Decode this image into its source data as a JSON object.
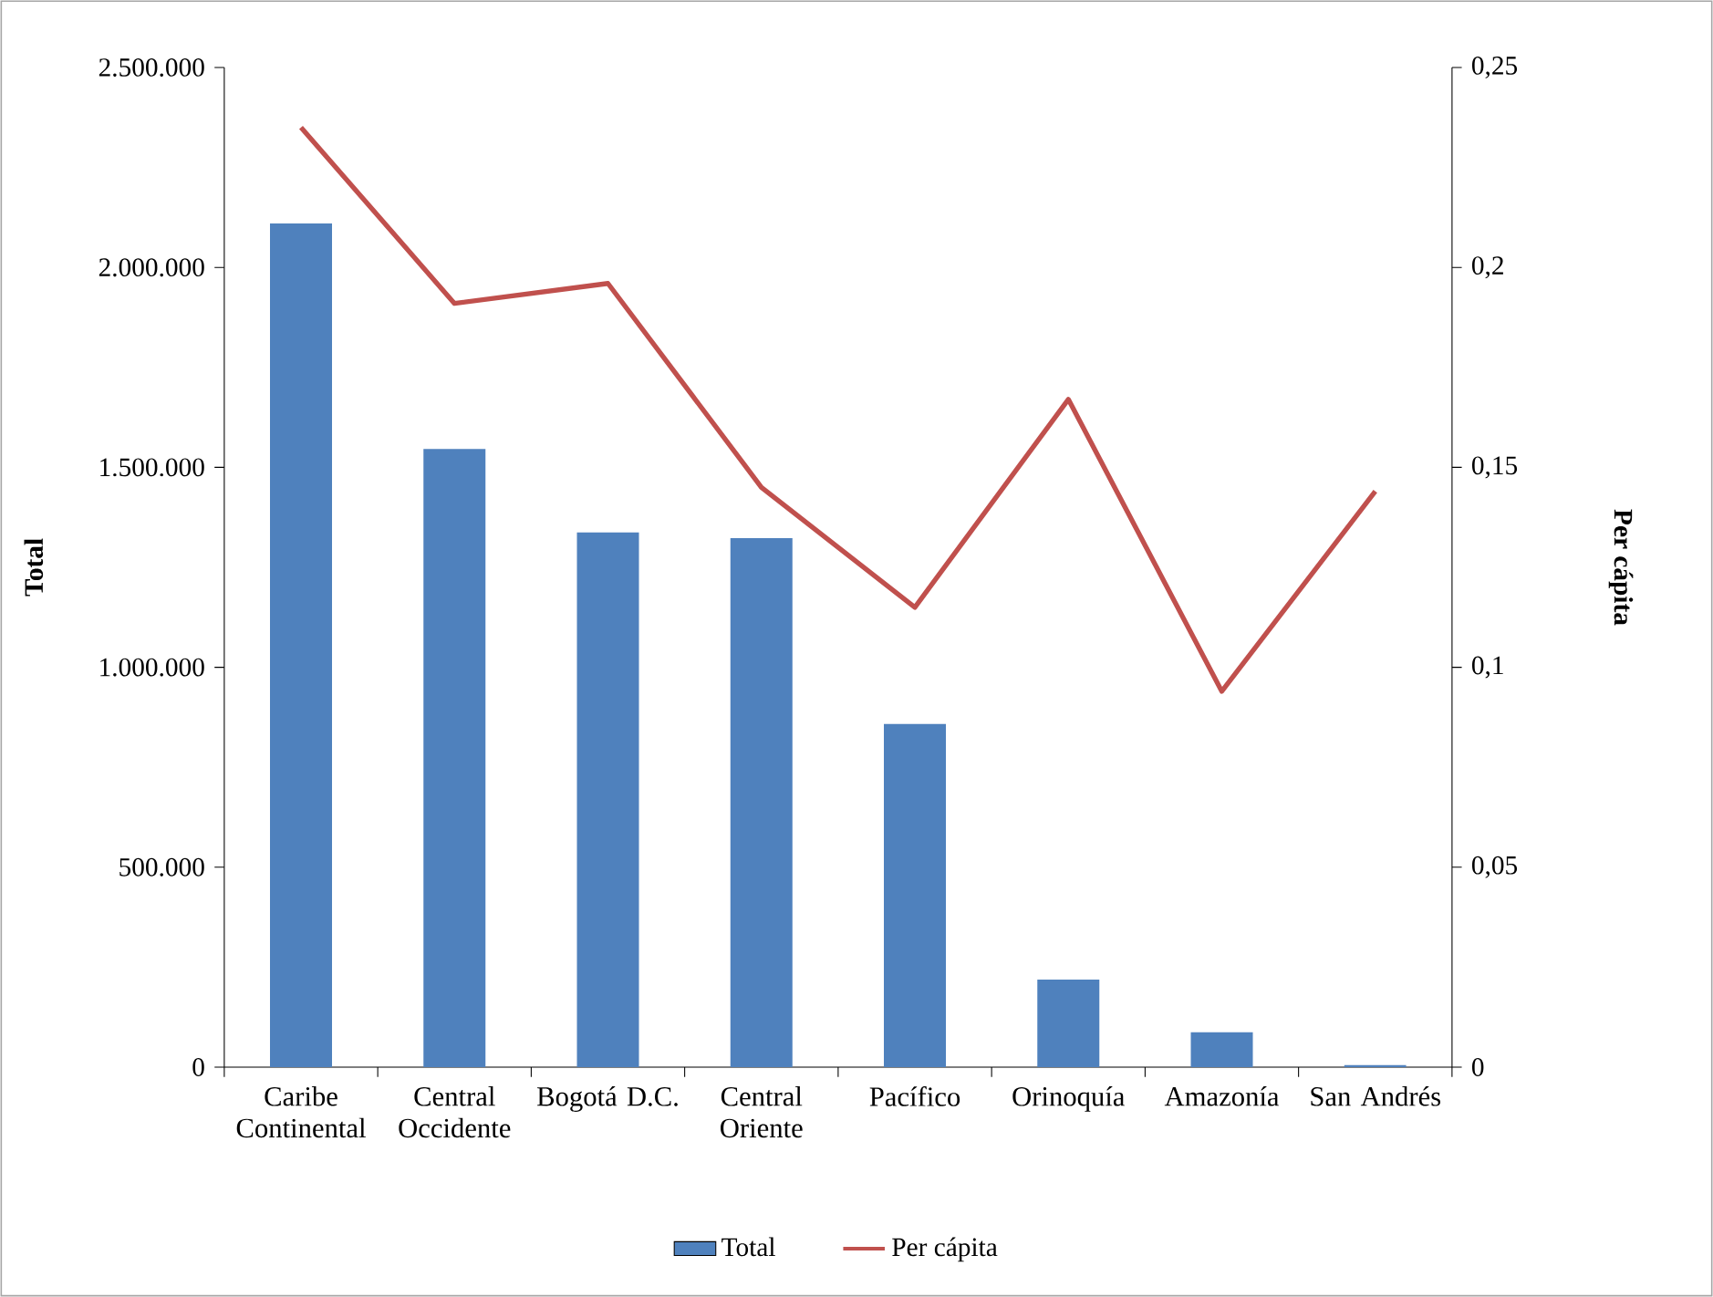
{
  "chart_data": {
    "type": "bar",
    "categories": [
      "Caribe Continental",
      "Central Occidente",
      "Bogotá D.C.",
      "Central Oriente",
      "Pacífico",
      "Orinoquía",
      "Amazonía",
      "San Andrés"
    ],
    "series": [
      {
        "name": "Total",
        "color": "#4f81bd",
        "values": [
          2110000,
          1546000,
          1337000,
          1323000,
          858000,
          219000,
          87000,
          5000
        ]
      },
      {
        "name": "Per cápita",
        "type": "line",
        "axis": "y2",
        "color": "#c0504d",
        "values": [
          0.235,
          0.191,
          0.196,
          0.145,
          0.115,
          0.167,
          0.094,
          0.144
        ]
      }
    ],
    "ylabel": "Total",
    "y2label": "Per cápita",
    "ylim": [
      0,
      2500000
    ],
    "yticks": [
      0,
      {
        "value": 500000,
        "label": "500.000"
      },
      {
        "value": 1000000,
        "label": "1.000.000"
      },
      {
        "value": 1500000,
        "label": "1.500.000"
      },
      {
        "value": 2000000,
        "label": "2.000.000"
      },
      {
        "value": 2500000,
        "label": "2.500.000"
      }
    ],
    "y2lim": [
      0,
      0.25
    ],
    "y2ticks": [
      0,
      {
        "value": 0.05,
        "label": "0,05"
      },
      {
        "value": 0.1,
        "label": "0,1"
      },
      {
        "value": 0.15,
        "label": "0,15"
      },
      {
        "value": 0.2,
        "label": "0,2"
      },
      {
        "value": 0.25,
        "label": "0,25"
      }
    ],
    "legend": "bottom",
    "marker": "none"
  }
}
